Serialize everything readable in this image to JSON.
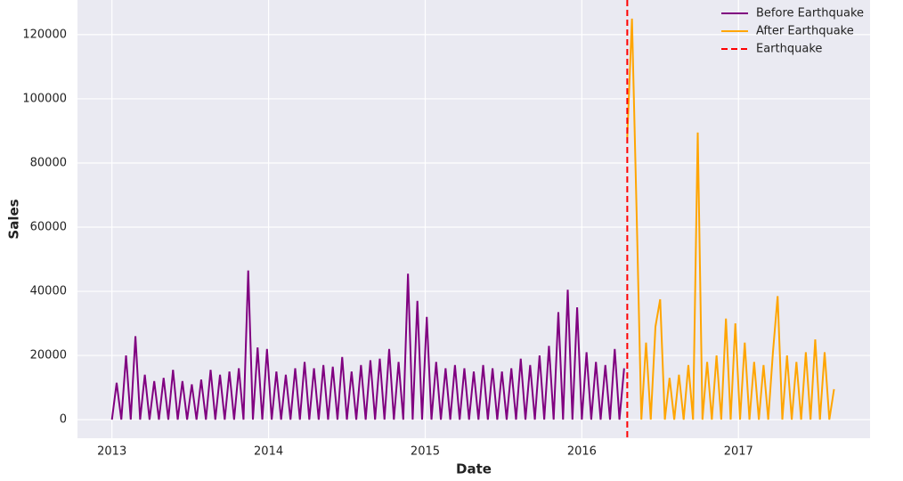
{
  "chart_data": {
    "type": "line",
    "xlabel": "Date",
    "ylabel": "Sales",
    "xlim": [
      2012.78,
      2017.84
    ],
    "ylim": [
      -5800,
      130800
    ],
    "xticks": [
      2013,
      2014,
      2015,
      2016,
      2017
    ],
    "yticks": [
      0,
      20000,
      40000,
      60000,
      80000,
      100000,
      120000
    ],
    "grid": true,
    "legend": "upper right",
    "series": [
      {
        "name": "Before Earthquake",
        "color": "#800080",
        "x": [
          2013.0,
          2013.03,
          2013.06,
          2013.09,
          2013.12,
          2013.15,
          2013.18,
          2013.21,
          2013.24,
          2013.27,
          2013.3,
          2013.33,
          2013.36,
          2013.39,
          2013.42,
          2013.45,
          2013.48,
          2013.51,
          2013.54,
          2013.57,
          2013.6,
          2013.63,
          2013.66,
          2013.69,
          2013.72,
          2013.75,
          2013.78,
          2013.81,
          2013.84,
          2013.87,
          2013.9,
          2013.93,
          2013.96,
          2013.99,
          2014.02,
          2014.05,
          2014.08,
          2014.11,
          2014.14,
          2014.17,
          2014.2,
          2014.23,
          2014.26,
          2014.29,
          2014.32,
          2014.35,
          2014.38,
          2014.41,
          2014.44,
          2014.47,
          2014.5,
          2014.53,
          2014.56,
          2014.59,
          2014.62,
          2014.65,
          2014.68,
          2014.71,
          2014.74,
          2014.77,
          2014.8,
          2014.83,
          2014.86,
          2014.89,
          2014.92,
          2014.95,
          2014.98,
          2015.01,
          2015.04,
          2015.07,
          2015.1,
          2015.13,
          2015.16,
          2015.19,
          2015.22,
          2015.25,
          2015.28,
          2015.31,
          2015.34,
          2015.37,
          2015.4,
          2015.43,
          2015.46,
          2015.49,
          2015.52,
          2015.55,
          2015.58,
          2015.61,
          2015.64,
          2015.67,
          2015.7,
          2015.73,
          2015.76,
          2015.79,
          2015.82,
          2015.85,
          2015.88,
          2015.91,
          2015.94,
          2015.97,
          2016.0,
          2016.03,
          2016.06,
          2016.09,
          2016.12,
          2016.15,
          2016.18,
          2016.21,
          2016.24,
          2016.27
        ],
        "values": [
          0,
          11500,
          0,
          20000,
          0,
          26000,
          0,
          14000,
          0,
          12000,
          0,
          13000,
          0,
          15500,
          0,
          12000,
          0,
          11000,
          0,
          12500,
          0,
          15500,
          0,
          14000,
          0,
          15000,
          0,
          16000,
          0,
          46500,
          0,
          22500,
          0,
          22000,
          0,
          15000,
          0,
          14000,
          0,
          16000,
          0,
          18000,
          0,
          16000,
          0,
          17000,
          0,
          16500,
          0,
          19500,
          0,
          15000,
          0,
          17000,
          0,
          18500,
          0,
          19000,
          0,
          22000,
          0,
          18000,
          0,
          45500,
          0,
          37000,
          0,
          32000,
          0,
          18000,
          0,
          16000,
          0,
          17000,
          0,
          16000,
          0,
          15000,
          0,
          17000,
          0,
          16000,
          0,
          15000,
          0,
          16000,
          0,
          19000,
          0,
          17000,
          0,
          20000,
          0,
          23000,
          0,
          33500,
          0,
          40500,
          0,
          35000,
          0,
          21000,
          0,
          18000,
          0,
          17000,
          0,
          22000,
          0,
          16000
        ]
      },
      {
        "name": "After Earthquake",
        "color": "#ffa500",
        "x": [
          2016.29,
          2016.32,
          2016.35,
          2016.38,
          2016.41,
          2016.44,
          2016.47,
          2016.5,
          2016.53,
          2016.56,
          2016.59,
          2016.62,
          2016.65,
          2016.68,
          2016.71,
          2016.74,
          2016.77,
          2016.8,
          2016.83,
          2016.86,
          2016.89,
          2016.92,
          2016.95,
          2016.98,
          2017.01,
          2017.04,
          2017.07,
          2017.1,
          2017.13,
          2017.16,
          2017.19,
          2017.22,
          2017.25,
          2017.28,
          2017.31,
          2017.34,
          2017.37,
          2017.4,
          2017.43,
          2017.46,
          2017.49,
          2017.52,
          2017.55,
          2017.58,
          2017.61
        ],
        "values": [
          88000,
          125000,
          64000,
          0,
          24000,
          0,
          29000,
          37500,
          0,
          13000,
          0,
          14000,
          0,
          17000,
          0,
          89500,
          0,
          18000,
          0,
          20000,
          0,
          31500,
          0,
          30000,
          0,
          24000,
          0,
          18000,
          0,
          17000,
          0,
          21000,
          38500,
          0,
          20000,
          0,
          18000,
          0,
          21000,
          0,
          25000,
          0,
          21000,
          0,
          9500
        ]
      }
    ],
    "vline": {
      "name": "Earthquake",
      "x": 2016.29,
      "color": "#ff0000"
    }
  }
}
